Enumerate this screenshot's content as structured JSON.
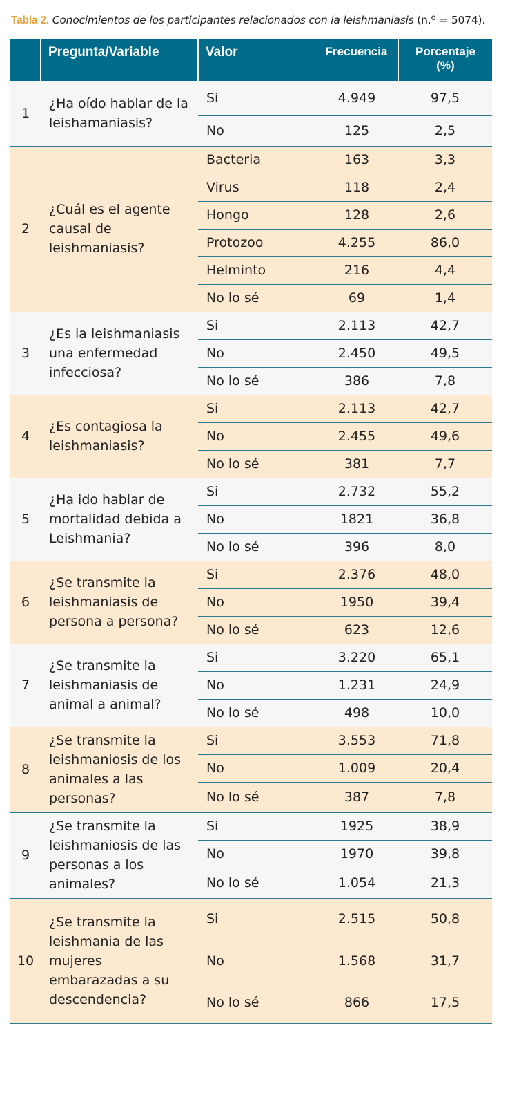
{
  "caption": {
    "label": "Tabla 2.",
    "text": "Conocimientos de los participantes relacionados con la leishmaniasis",
    "n": "(n.º = 5074)."
  },
  "header": {
    "col_num": "",
    "col_question": "Pregunta/Variable",
    "col_value": "Valor",
    "col_freq": "Frecuencia",
    "col_pct": "Porcentaje (%)"
  },
  "groups": [
    {
      "num": "1",
      "question": "¿Ha oído hablar de la leishamaniasis?",
      "rows": [
        {
          "value": "Si",
          "freq": "4.949",
          "pct": "97,5"
        },
        {
          "value": "No",
          "freq": "125",
          "pct": "2,5"
        }
      ]
    },
    {
      "num": "2",
      "question": "¿Cuál es el agente causal de leishmaniasis?",
      "rows": [
        {
          "value": "Bacteria",
          "freq": "163",
          "pct": "3,3"
        },
        {
          "value": "Virus",
          "freq": "118",
          "pct": "2,4"
        },
        {
          "value": "Hongo",
          "freq": "128",
          "pct": "2,6"
        },
        {
          "value": "Protozoo",
          "freq": "4.255",
          "pct": "86,0"
        },
        {
          "value": "Helminto",
          "freq": "216",
          "pct": "4,4"
        },
        {
          "value": "No lo sé",
          "freq": "69",
          "pct": "1,4"
        }
      ]
    },
    {
      "num": "3",
      "question": "¿Es la leishmaniasis una enfermedad infecciosa?",
      "rows": [
        {
          "value": "Si",
          "freq": "2.113",
          "pct": "42,7"
        },
        {
          "value": "No",
          "freq": "2.450",
          "pct": "49,5"
        },
        {
          "value": "No lo sé",
          "freq": "386",
          "pct": "7,8"
        }
      ]
    },
    {
      "num": "4",
      "question": "¿Es contagiosa la leishmaniasis?",
      "rows": [
        {
          "value": "Si",
          "freq": "2.113",
          "pct": "42,7"
        },
        {
          "value": "No",
          "freq": "2.455",
          "pct": "49,6"
        },
        {
          "value": "No lo sé",
          "freq": "381",
          "pct": "7,7"
        }
      ]
    },
    {
      "num": "5",
      "question": "¿Ha ido hablar de mortalidad debida a Leishmania?",
      "rows": [
        {
          "value": "Si",
          "freq": "2.732",
          "pct": "55,2"
        },
        {
          "value": "No",
          "freq": "1821",
          "pct": "36,8"
        },
        {
          "value": "No lo sé",
          "freq": "396",
          "pct": "8,0"
        }
      ]
    },
    {
      "num": "6",
      "question": "¿Se transmite la leishmaniasis de persona a persona?",
      "rows": [
        {
          "value": "Si",
          "freq": "2.376",
          "pct": "48,0"
        },
        {
          "value": "No",
          "freq": "1950",
          "pct": "39,4"
        },
        {
          "value": "No lo sé",
          "freq": "623",
          "pct": "12,6"
        }
      ]
    },
    {
      "num": "7",
      "question": "¿Se transmite la leishmaniasis de animal a animal?",
      "rows": [
        {
          "value": "Si",
          "freq": "3.220",
          "pct": "65,1"
        },
        {
          "value": "No",
          "freq": "1.231",
          "pct": "24,9"
        },
        {
          "value": "No lo sé",
          "freq": "498",
          "pct": "10,0"
        }
      ]
    },
    {
      "num": "8",
      "question": "¿Se transmite la leishmaniosis de los animales a las personas?",
      "rows": [
        {
          "value": "Si",
          "freq": "3.553",
          "pct": "71,8"
        },
        {
          "value": "No",
          "freq": "1.009",
          "pct": "20,4"
        },
        {
          "value": "No lo sé",
          "freq": "387",
          "pct": "7,8"
        }
      ]
    },
    {
      "num": "9",
      "question": "¿Se transmite la leishmaniosis de las personas a los animales?",
      "rows": [
        {
          "value": "Si",
          "freq": "1925",
          "pct": "38,9"
        },
        {
          "value": "No",
          "freq": "1970",
          "pct": "39,8"
        },
        {
          "value": "No lo sé",
          "freq": "1.054",
          "pct": "21,3"
        }
      ]
    },
    {
      "num": "10",
      "question": "¿Se transmite la leishmania de las mujeres embarazadas a su descendencia?",
      "rows": [
        {
          "value": "Si",
          "freq": "2.515",
          "pct": "50,8"
        },
        {
          "value": "No",
          "freq": "1.568",
          "pct": "31,7"
        },
        {
          "value": "No lo sé",
          "freq": "866",
          "pct": "17,5"
        }
      ]
    }
  ]
}
